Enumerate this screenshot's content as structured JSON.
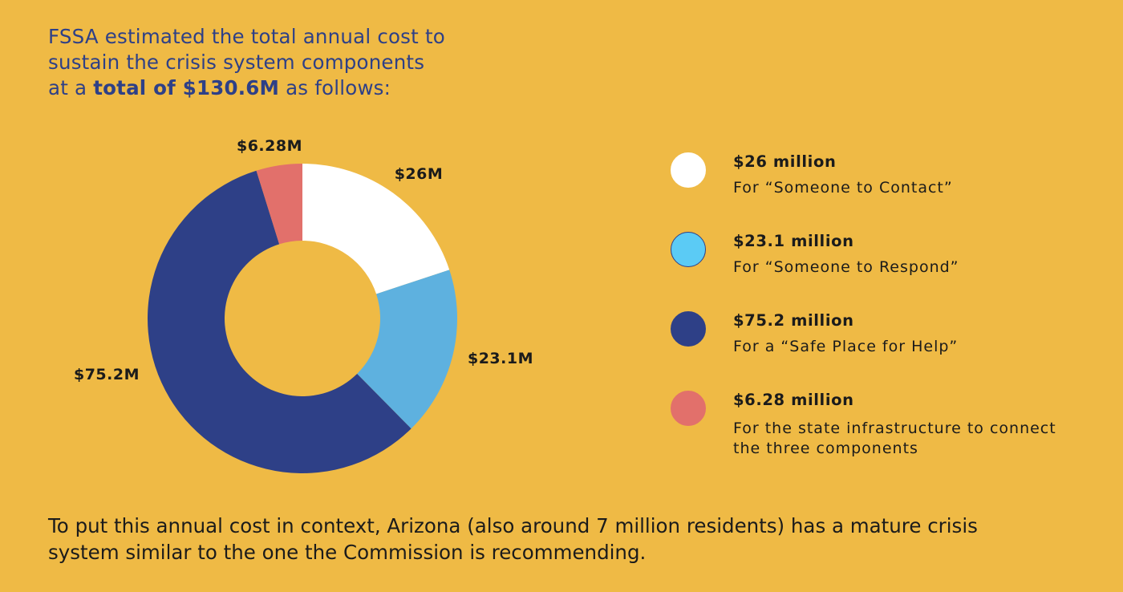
{
  "intro": {
    "line1": "FSSA estimated the total annual cost to",
    "line2": "sustain the crisis system components",
    "line3_prefix": "at a ",
    "line3_bold": "total of $130.6M",
    "line3_suffix": " as follows:"
  },
  "chart_data": {
    "type": "pie",
    "style": "donut",
    "title": "",
    "total": 130.6,
    "units": "$M",
    "categories": [
      "Someone to Contact",
      "Someone to Respond",
      "Safe Place for Help",
      "State infrastructure"
    ],
    "values": [
      26,
      23.1,
      75.2,
      6.28
    ],
    "labels": [
      "$26M",
      "$23.1M",
      "$75.2M",
      "$6.28M"
    ],
    "colors": [
      "#FFFFFF",
      "#5EB1DF",
      "#2E4087",
      "#E2706B"
    ],
    "start_angle": "12 o'clock",
    "direction": "clockwise"
  },
  "legend": {
    "items": [
      {
        "value": "$26 million",
        "desc_lines": [
          "For “Someone to Contact”"
        ],
        "color": "#FFFFFF",
        "border": "#FFFFFF"
      },
      {
        "value": "$23.1 million",
        "desc_lines": [
          "For “Someone to Respond”"
        ],
        "color": "#5BCBF5",
        "border": "#2E4087"
      },
      {
        "value": "$75.2 million",
        "desc_lines": [
          "For a “Safe Place for Help”"
        ],
        "color": "#2E4087",
        "border": "#2E4087"
      },
      {
        "value": "$6.28 million",
        "desc_lines": [
          "For the state infrastructure to connect",
          "the three components"
        ],
        "color": "#E2706B",
        "border": "#E2706B"
      }
    ]
  },
  "footer": {
    "line1": "To put this annual cost in context, Arizona (also around 7 million residents) has a mature crisis",
    "line2": "system similar to the one the Commission is recommending."
  }
}
